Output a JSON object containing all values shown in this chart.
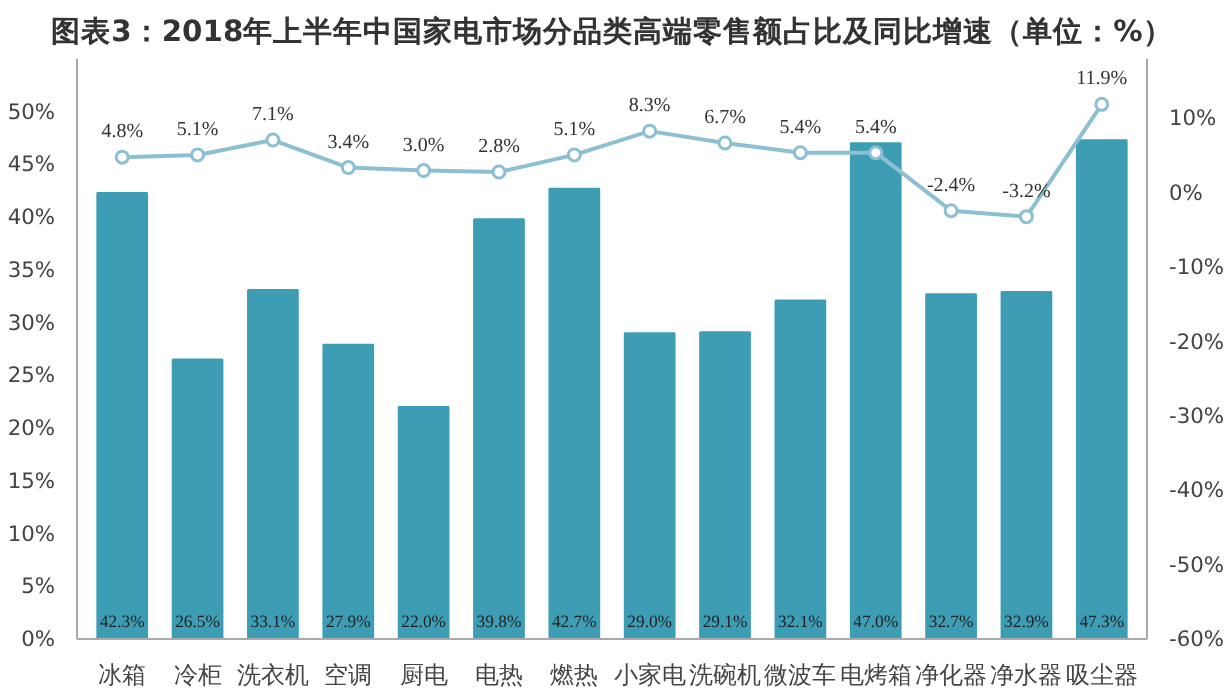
{
  "chart_data": {
    "type": "bar",
    "title": "图表3：2018年上半年中国家电市场分品类高端零售额占比及同比增速（单位：%）",
    "categories": [
      "冰箱",
      "冷柜",
      "洗衣机",
      "空调",
      "厨电",
      "电热",
      "燃热",
      "小家电",
      "洗碗机",
      "微波车",
      "电烤箱",
      "净化器",
      "净水器",
      "吸尘器"
    ],
    "series": [
      {
        "color": "#3d9db5",
        "values": [
          42.3,
          26.5,
          33.1,
          27.9,
          22.0,
          39.8,
          42.7,
          29.0,
          29.1,
          32.1,
          47.0,
          32.7,
          32.9,
          47.3
        ],
        "value_labels": [
          "42.3%",
          "26.5%",
          "33.1%",
          "27.9%",
          "22.0%",
          "39.8%",
          "42.7%",
          "29.0%",
          "29.1%",
          "32.1%",
          "47.0%",
          "32.7%",
          "32.9%",
          "47.3%"
        ]
      },
      {
        "type": "line",
        "axis": "y2",
        "color": "#8dbfd2",
        "marker": "circle",
        "values": [
          4.8,
          5.1,
          7.1,
          3.4,
          3.0,
          2.8,
          5.1,
          8.3,
          6.7,
          5.4,
          5.4,
          -2.4,
          -3.2,
          11.9
        ],
        "value_labels": [
          "4.8%",
          "5.1%",
          "7.1%",
          "3.4%",
          "3.0%",
          "2.8%",
          "5.1%",
          "8.3%",
          "6.7%",
          "5.4%",
          "5.4%",
          "-2.4%",
          "-3.2%",
          "11.9%"
        ]
      }
    ],
    "ylim": [
      0,
      55
    ],
    "yticks": [
      {
        "value": 0,
        "label": "0%"
      },
      {
        "value": 5,
        "label": "5%"
      },
      {
        "value": 10,
        "label": "10%"
      },
      {
        "value": 15,
        "label": "15%"
      },
      {
        "value": 20,
        "label": "20%"
      },
      {
        "value": 25,
        "label": "25%"
      },
      {
        "value": 30,
        "label": "30%"
      },
      {
        "value": 35,
        "label": "35%"
      },
      {
        "value": 40,
        "label": "40%"
      },
      {
        "value": 45,
        "label": "45%"
      },
      {
        "value": 50,
        "label": "50%"
      }
    ],
    "y2lim": [
      -60,
      18
    ],
    "y2ticks": [
      {
        "value": -60,
        "label": "-60%"
      },
      {
        "value": -50,
        "label": "-50%"
      },
      {
        "value": -40,
        "label": "-40%"
      },
      {
        "value": -30,
        "label": "-30%"
      },
      {
        "value": -20,
        "label": "-20%"
      },
      {
        "value": -10,
        "label": "-10%"
      },
      {
        "value": 0,
        "label": "0%"
      },
      {
        "value": 10,
        "label": "10%"
      }
    ],
    "grid": false
  }
}
